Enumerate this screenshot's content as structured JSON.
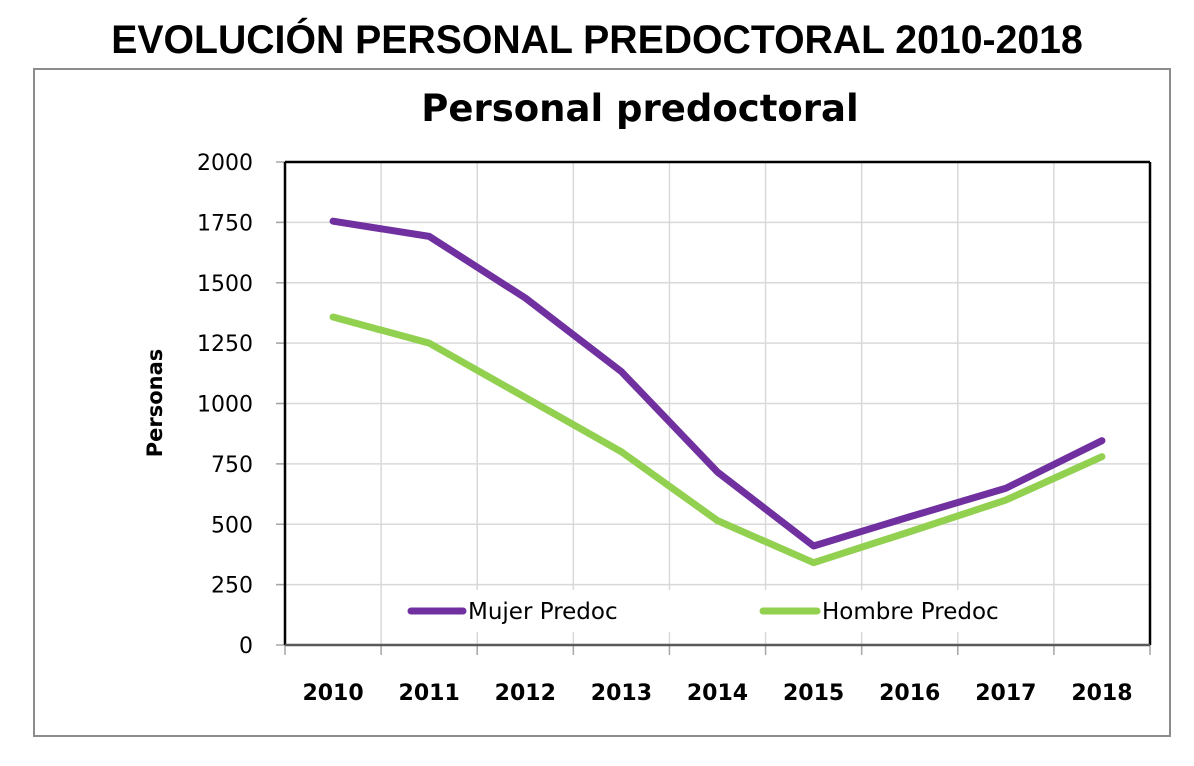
{
  "page_title": "EVOLUCIÓN PERSONAL PREDOCTORAL 2010-2018",
  "chart_data": {
    "type": "line",
    "title": "Personal predoctoral",
    "xlabel": "",
    "ylabel": "Personas",
    "categories": [
      "2010",
      "2011",
      "2012",
      "2013",
      "2014",
      "2015",
      "2016",
      "2017",
      "2018"
    ],
    "series": [
      {
        "name": "Mujer Predoc",
        "color": "#7030A0",
        "values": [
          1755,
          1692,
          1437,
          1132,
          716,
          410,
          531,
          649,
          846
        ]
      },
      {
        "name": "Hombre Predoc",
        "color": "#92D050",
        "values": [
          1358,
          1250,
          1025,
          800,
          515,
          341,
          469,
          600,
          780
        ]
      }
    ],
    "ylim": [
      0,
      2000
    ],
    "yticks": [
      "0",
      "250",
      "500",
      "750",
      "1000",
      "1250",
      "1500",
      "1750",
      "2000"
    ],
    "ytick_values": [
      0,
      250,
      500,
      750,
      1000,
      1250,
      1500,
      1750,
      2000
    ],
    "grid": true,
    "legend_position": "bottom-inside"
  }
}
